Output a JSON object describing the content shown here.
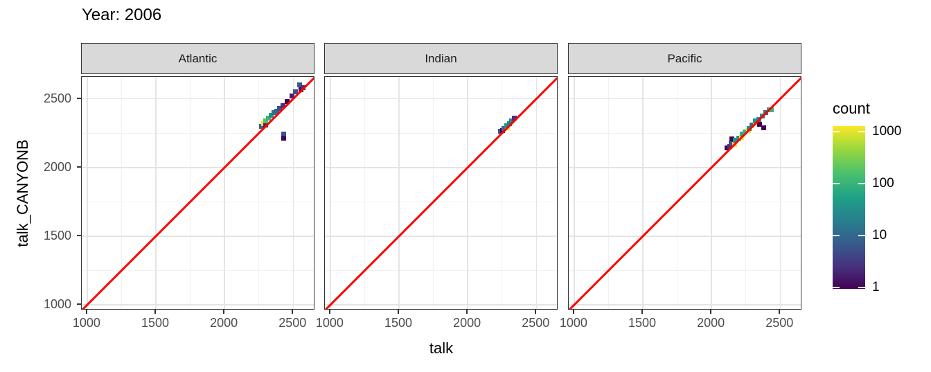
{
  "title": "Year: 2006",
  "axes": {
    "x_label": "talk",
    "y_label": "talk_CANYONB",
    "x_ticks": [
      1000,
      1500,
      2000,
      2500
    ],
    "y_ticks": [
      1000,
      1500,
      2000,
      2500
    ],
    "minor_ticks": [
      1250,
      1750,
      2250
    ],
    "x_range": [
      960,
      2660
    ],
    "y_range": [
      960,
      2660
    ]
  },
  "legend": {
    "title": "count",
    "ticks": [
      1000,
      100,
      10,
      1
    ],
    "scale": "log10",
    "palette": "viridis"
  },
  "colors": {
    "abline": "#ff0000",
    "strip_bg": "#d9d9d9",
    "panel_border": "#333333",
    "tick_text": "#4d4d4d",
    "viridis_low": "#440154",
    "viridis_high": "#fde725"
  },
  "chart_data": {
    "type": "heatmap",
    "subtype": "geom_bin2d faceted scatter of talk vs talk_CANYONB",
    "title": "Year: 2006",
    "xlabel": "talk",
    "ylabel": "talk_CANYONB",
    "x_range": [
      960,
      2660
    ],
    "y_range": [
      960,
      2660
    ],
    "grid": "on",
    "legend_position": "right",
    "abline": {
      "slope": 1,
      "intercept": 0,
      "color": "#ff0000"
    },
    "count_scale": {
      "title": "count",
      "type": "log10",
      "ticks": [
        1,
        10,
        100,
        1000
      ]
    },
    "facets": [
      {
        "label": "Atlantic",
        "tiles": [
          {
            "x": 2270,
            "y": 2300,
            "c": "#33638d",
            "count": 15
          },
          {
            "x": 2282,
            "y": 2318,
            "c": "#fde725",
            "count": 1000
          },
          {
            "x": 2300,
            "y": 2310,
            "c": "#481f70",
            "count": 3
          },
          {
            "x": 2298,
            "y": 2340,
            "c": "#54c568",
            "count": 350
          },
          {
            "x": 2320,
            "y": 2362,
            "c": "#35b779",
            "count": 250
          },
          {
            "x": 2340,
            "y": 2382,
            "c": "#21918c",
            "count": 80
          },
          {
            "x": 2360,
            "y": 2398,
            "c": "#2c728e",
            "count": 30
          },
          {
            "x": 2382,
            "y": 2412,
            "c": "#31688e",
            "count": 15
          },
          {
            "x": 2400,
            "y": 2428,
            "c": "#3b528b",
            "count": 8
          },
          {
            "x": 2425,
            "y": 2452,
            "c": "#46327e",
            "count": 3
          },
          {
            "x": 2455,
            "y": 2482,
            "c": "#440154",
            "count": 1
          },
          {
            "x": 2490,
            "y": 2522,
            "c": "#481f70",
            "count": 3
          },
          {
            "x": 2518,
            "y": 2552,
            "c": "#3b528b",
            "count": 8
          },
          {
            "x": 2545,
            "y": 2602,
            "c": "#365c8d",
            "count": 15
          },
          {
            "x": 2558,
            "y": 2568,
            "c": "#440154",
            "count": 1
          },
          {
            "x": 2572,
            "y": 2582,
            "c": "#46327e",
            "count": 3
          },
          {
            "x": 2430,
            "y": 2245,
            "c": "#3b528b",
            "count": 8
          },
          {
            "x": 2430,
            "y": 2212,
            "c": "#440154",
            "count": 1
          }
        ]
      },
      {
        "label": "Indian",
        "tiles": [
          {
            "x": 2238,
            "y": 2262,
            "c": "#3b528b",
            "count": 8
          },
          {
            "x": 2252,
            "y": 2268,
            "c": "#440154",
            "count": 1
          },
          {
            "x": 2262,
            "y": 2285,
            "c": "#2c728e",
            "count": 30
          },
          {
            "x": 2288,
            "y": 2290,
            "c": "#fde725",
            "count": 1000
          },
          {
            "x": 2282,
            "y": 2302,
            "c": "#21918c",
            "count": 80
          },
          {
            "x": 2302,
            "y": 2322,
            "c": "#26828e",
            "count": 50
          },
          {
            "x": 2322,
            "y": 2342,
            "c": "#25858e",
            "count": 50
          },
          {
            "x": 2342,
            "y": 2358,
            "c": "#46327e",
            "count": 3
          }
        ]
      },
      {
        "label": "Pacific",
        "tiles": [
          {
            "x": 2112,
            "y": 2142,
            "c": "#440154",
            "count": 1
          },
          {
            "x": 2135,
            "y": 2155,
            "c": "#46327e",
            "count": 3
          },
          {
            "x": 2145,
            "y": 2180,
            "c": "#3b528b",
            "count": 8
          },
          {
            "x": 2148,
            "y": 2206,
            "c": "#440154",
            "count": 1
          },
          {
            "x": 2170,
            "y": 2170,
            "c": "#fde725",
            "count": 1000
          },
          {
            "x": 2172,
            "y": 2196,
            "c": "#21918c",
            "count": 80
          },
          {
            "x": 2196,
            "y": 2216,
            "c": "#21918c",
            "count": 80
          },
          {
            "x": 2220,
            "y": 2220,
            "c": "#fde725",
            "count": 1000
          },
          {
            "x": 2222,
            "y": 2242,
            "c": "#27ad81",
            "count": 150
          },
          {
            "x": 2246,
            "y": 2258,
            "c": "#35b779",
            "count": 250
          },
          {
            "x": 2270,
            "y": 2270,
            "c": "#fde725",
            "count": 1000
          },
          {
            "x": 2272,
            "y": 2284,
            "c": "#21918c",
            "count": 80
          },
          {
            "x": 2296,
            "y": 2308,
            "c": "#2c728e",
            "count": 30
          },
          {
            "x": 2320,
            "y": 2320,
            "c": "#fde725",
            "count": 1000
          },
          {
            "x": 2322,
            "y": 2338,
            "c": "#21918c",
            "count": 80
          },
          {
            "x": 2346,
            "y": 2348,
            "c": "#25858e",
            "count": 50
          },
          {
            "x": 2348,
            "y": 2316,
            "c": "#440154",
            "count": 1
          },
          {
            "x": 2372,
            "y": 2374,
            "c": "#21918c",
            "count": 80
          },
          {
            "x": 2378,
            "y": 2290,
            "c": "#440154",
            "count": 1
          },
          {
            "x": 2396,
            "y": 2398,
            "c": "#2c728e",
            "count": 30
          },
          {
            "x": 2420,
            "y": 2422,
            "c": "#27ad81",
            "count": 150
          },
          {
            "x": 2438,
            "y": 2418,
            "c": "#35b779",
            "count": 250
          }
        ]
      }
    ]
  }
}
